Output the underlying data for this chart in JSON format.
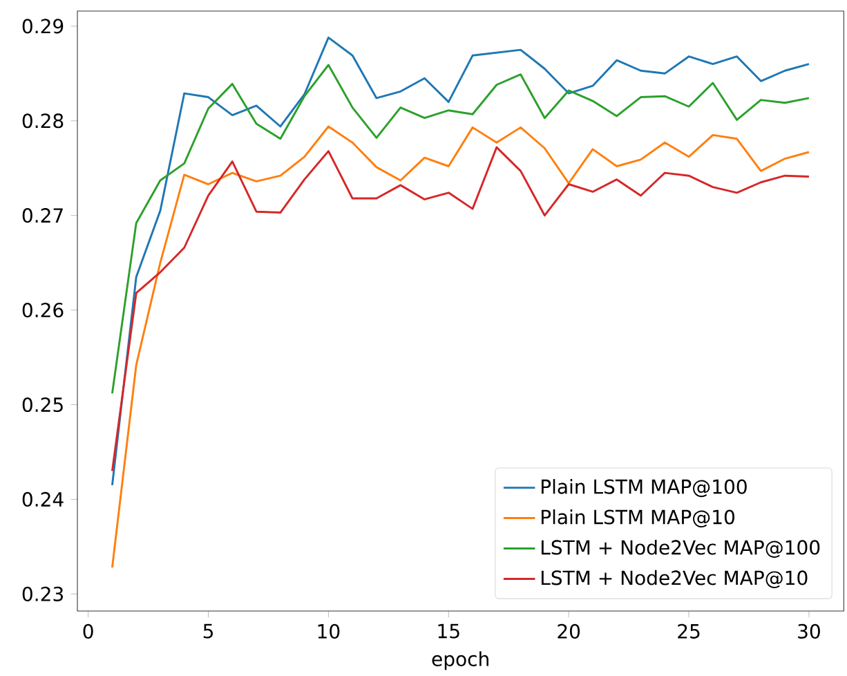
{
  "chart_data": {
    "type": "line",
    "xlabel": "epoch",
    "x": [
      1,
      2,
      3,
      4,
      5,
      6,
      7,
      8,
      9,
      10,
      11,
      12,
      13,
      14,
      15,
      16,
      17,
      18,
      19,
      20,
      21,
      22,
      23,
      24,
      25,
      26,
      27,
      28,
      29,
      30
    ],
    "xlim": [
      -0.45,
      31.45
    ],
    "xticks": [
      0,
      5,
      10,
      15,
      20,
      25,
      30
    ],
    "ylim": [
      0.2282,
      0.2916
    ],
    "yticks": [
      0.23,
      0.24,
      0.25,
      0.26,
      0.27,
      0.28,
      0.29
    ],
    "legend": "bottom right",
    "grid": false,
    "series": [
      {
        "name": "Plain LSTM MAP@100",
        "color": "#1f77b4",
        "values": [
          0.2415,
          0.2635,
          0.2705,
          0.2829,
          0.2825,
          0.2806,
          0.2816,
          0.2794,
          0.2828,
          0.2888,
          0.2869,
          0.2824,
          0.2831,
          0.2845,
          0.282,
          0.2869,
          0.2872,
          0.2875,
          0.2855,
          0.2829,
          0.2837,
          0.2864,
          0.2853,
          0.285,
          0.2868,
          0.286,
          0.2868,
          0.2842,
          0.2853,
          0.286
        ]
      },
      {
        "name": "Plain LSTM MAP@10",
        "color": "#ff7f0e",
        "values": [
          0.2328,
          0.2542,
          0.265,
          0.2743,
          0.2733,
          0.2745,
          0.2736,
          0.2742,
          0.2762,
          0.2794,
          0.2777,
          0.2751,
          0.2737,
          0.2761,
          0.2752,
          0.2793,
          0.2777,
          0.2793,
          0.2771,
          0.2734,
          0.277,
          0.2752,
          0.2759,
          0.2777,
          0.2762,
          0.2785,
          0.2781,
          0.2747,
          0.276,
          0.2767
        ]
      },
      {
        "name": "LSTM + Node2Vec MAP@100",
        "color": "#2ca02c",
        "values": [
          0.2512,
          0.2692,
          0.2737,
          0.2755,
          0.2813,
          0.2839,
          0.2797,
          0.2781,
          0.2826,
          0.2859,
          0.2814,
          0.2782,
          0.2814,
          0.2803,
          0.2811,
          0.2807,
          0.2838,
          0.2849,
          0.2803,
          0.2832,
          0.2821,
          0.2805,
          0.2825,
          0.2826,
          0.2815,
          0.284,
          0.2801,
          0.2822,
          0.2819,
          0.2824
        ]
      },
      {
        "name": "LSTM + Node2Vec MAP@10",
        "color": "#d62728",
        "values": [
          0.243,
          0.2618,
          0.264,
          0.2666,
          0.2721,
          0.2757,
          0.2704,
          0.2703,
          0.2738,
          0.2768,
          0.2718,
          0.2718,
          0.2732,
          0.2717,
          0.2724,
          0.2707,
          0.2772,
          0.2747,
          0.27,
          0.2733,
          0.2725,
          0.2738,
          0.2721,
          0.2745,
          0.2742,
          0.273,
          0.2724,
          0.2735,
          0.2742,
          0.2741
        ]
      }
    ]
  }
}
